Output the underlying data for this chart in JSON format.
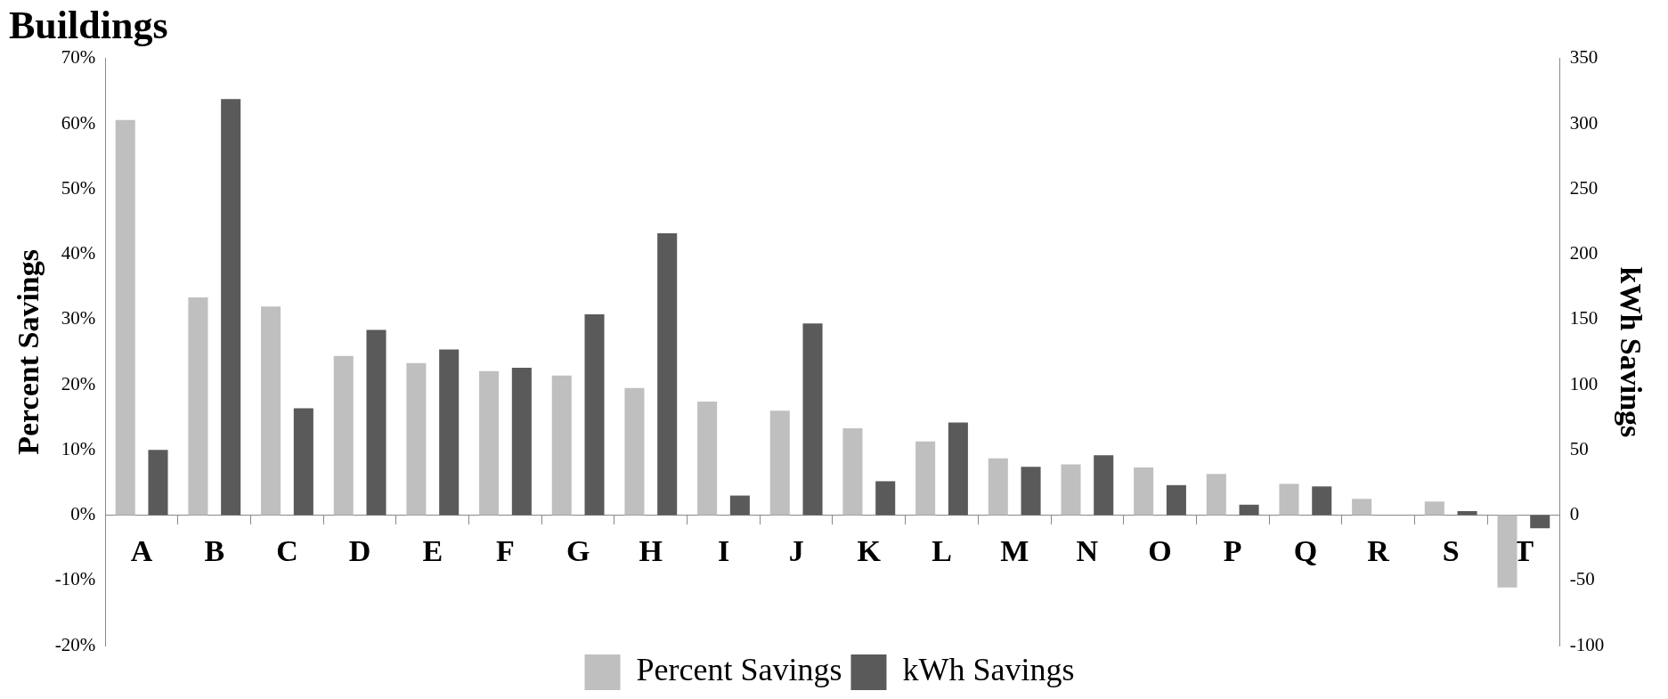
{
  "chart_data": {
    "type": "bar",
    "title": "Buildings",
    "ylabel": "Percent Savings",
    "y2label": "kWh Savings",
    "categories": [
      "A",
      "B",
      "C",
      "D",
      "E",
      "F",
      "G",
      "H",
      "I",
      "J",
      "K",
      "L",
      "M",
      "N",
      "O",
      "P",
      "Q",
      "R",
      "S",
      "T"
    ],
    "series": [
      {
        "name": "Percent Savings",
        "color": "#bfbfbf",
        "values": [
          60.6,
          33.4,
          32.0,
          24.4,
          23.3,
          22.1,
          21.4,
          19.5,
          17.4,
          16.0,
          13.3,
          11.3,
          8.7,
          7.8,
          7.3,
          6.3,
          4.8,
          2.5,
          2.1,
          -11.1
        ]
      },
      {
        "name": "kWh Savings",
        "color": "#5a5a5a",
        "axis": "y2",
        "values": [
          50,
          319,
          82,
          142,
          127,
          113,
          154,
          216,
          15,
          147,
          26,
          71,
          37,
          46,
          23,
          8,
          22,
          null,
          3,
          -10
        ]
      }
    ],
    "ylim": [
      -20,
      70
    ],
    "yticks": [
      {
        "value": -20,
        "label": "-20%"
      },
      {
        "value": -10,
        "label": "-10%"
      },
      {
        "value": 0,
        "label": "0%"
      },
      {
        "value": 10,
        "label": "10%"
      },
      {
        "value": 20,
        "label": "20%"
      },
      {
        "value": 30,
        "label": "30%"
      },
      {
        "value": 40,
        "label": "40%"
      },
      {
        "value": 50,
        "label": "50%"
      },
      {
        "value": 60,
        "label": "60%"
      },
      {
        "value": 70,
        "label": "70%"
      }
    ],
    "y2lim": [
      -100,
      350
    ],
    "y2ticks": [
      -100,
      -50,
      0,
      50,
      100,
      150,
      200,
      250,
      300,
      350
    ],
    "grid": false,
    "legend": "bottom"
  }
}
